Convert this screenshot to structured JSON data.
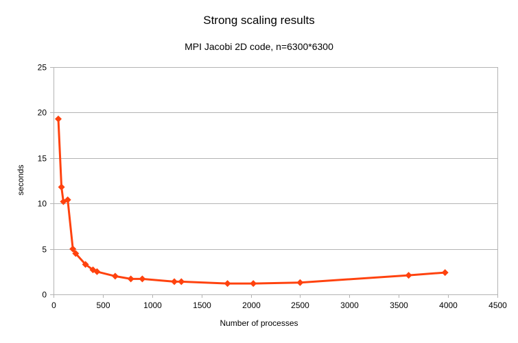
{
  "chart_data": {
    "type": "line",
    "title": "Strong scaling results",
    "subtitle": "MPI Jacobi 2D code, n=6300*6300",
    "xlabel": "Number of processes",
    "ylabel": "seconds",
    "xlim": [
      0,
      4500
    ],
    "ylim": [
      0,
      25
    ],
    "xticks": [
      0,
      500,
      1000,
      1500,
      2000,
      2500,
      3000,
      3500,
      4000,
      4500
    ],
    "yticks": [
      0,
      5,
      10,
      15,
      20,
      25
    ],
    "grid": "horizontal",
    "legend": "none",
    "series": [
      {
        "color": "#ff420e",
        "marker": "diamond",
        "x": [
          49,
          81,
          100,
          144,
          196,
          225,
          324,
          400,
          441,
          625,
          784,
          900,
          1225,
          1296,
          1764,
          2025,
          2500,
          3600,
          3969
        ],
        "y": [
          19.3,
          11.8,
          10.2,
          10.4,
          5.0,
          4.5,
          3.3,
          2.7,
          2.5,
          2.0,
          1.7,
          1.7,
          1.4,
          1.4,
          1.2,
          1.2,
          1.3,
          2.1,
          2.4
        ]
      }
    ]
  }
}
